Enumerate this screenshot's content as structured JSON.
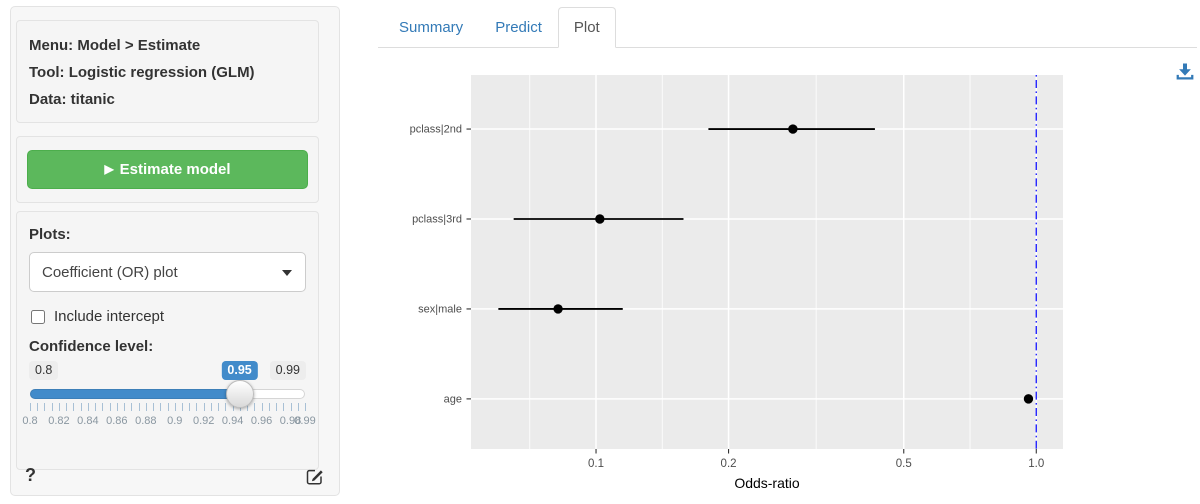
{
  "sidebar": {
    "summary": {
      "menu": "Menu: Model > Estimate",
      "tool": "Tool: Logistic regression (GLM)",
      "data": "Data: titanic"
    },
    "estimate_button": {
      "icon_glyph": "▶",
      "label": "Estimate model"
    },
    "plots_label": "Plots:",
    "plot_select": {
      "value": "Coefficient (OR) plot"
    },
    "include_intercept": {
      "label": "Include intercept",
      "checked": false
    },
    "confidence": {
      "label": "Confidence level:",
      "min": 0.8,
      "max": 0.99,
      "value": 0.95,
      "minor_step": 0.005,
      "min_label": "0.8",
      "max_label": "0.99",
      "value_label": "0.95",
      "tick_labels": [
        "0.8",
        "0.82",
        "0.84",
        "0.86",
        "0.88",
        "0.9",
        "0.92",
        "0.94",
        "0.96",
        "0.98",
        "0.99"
      ]
    },
    "help_label": "?"
  },
  "main": {
    "tabs": [
      {
        "label": "Summary",
        "active": false
      },
      {
        "label": "Predict",
        "active": false
      },
      {
        "label": "Plot",
        "active": true
      }
    ]
  },
  "chart_data": {
    "type": "scatter",
    "subtype": "coefficient-plot-with-error-bars",
    "title": "",
    "xlabel": "Odds-ratio",
    "ylabel": "",
    "x_scale": "log10",
    "xlim": [
      0.052,
      1.15
    ],
    "x_ticks": [
      0.1,
      0.2,
      0.5,
      1.0
    ],
    "x_tick_labels": [
      "0.1",
      "0.2",
      "0.5",
      "1.0"
    ],
    "x_minor_ticks": [
      0.0707,
      0.1414,
      0.3162,
      0.7071
    ],
    "categories": [
      "pclass|2nd",
      "pclass|3rd",
      "sex|male",
      "age"
    ],
    "series": [
      {
        "name": "odds_ratio",
        "points": [
          {
            "label": "pclass|2nd",
            "or": 0.28,
            "ci_low": 0.18,
            "ci_high": 0.43
          },
          {
            "label": "pclass|3rd",
            "or": 0.102,
            "ci_low": 0.065,
            "ci_high": 0.158
          },
          {
            "label": "sex|male",
            "or": 0.082,
            "ci_low": 0.06,
            "ci_high": 0.115
          },
          {
            "label": "age",
            "or": 0.96,
            "ci_low": 0.95,
            "ci_high": 0.975
          }
        ]
      }
    ],
    "reference_line": {
      "x": 1.0,
      "style": "dotdash",
      "color": "#2626ff"
    },
    "grid": "on",
    "legend": "none",
    "panel_bg": "#ebebeb",
    "gridline_color": "#ffffff",
    "point_color": "#000000",
    "axis_text_color": "#4d4d4d"
  },
  "colors": {
    "accent_green": "#5cb85c",
    "primary_blue": "#428bca",
    "link_blue": "#337ab7",
    "panel_gray": "#ebebeb"
  },
  "icons": {
    "play": "play-icon",
    "caret": "caret-down-icon",
    "help": "question-mark-icon",
    "edit": "edit-report-icon",
    "download": "download-icon"
  }
}
